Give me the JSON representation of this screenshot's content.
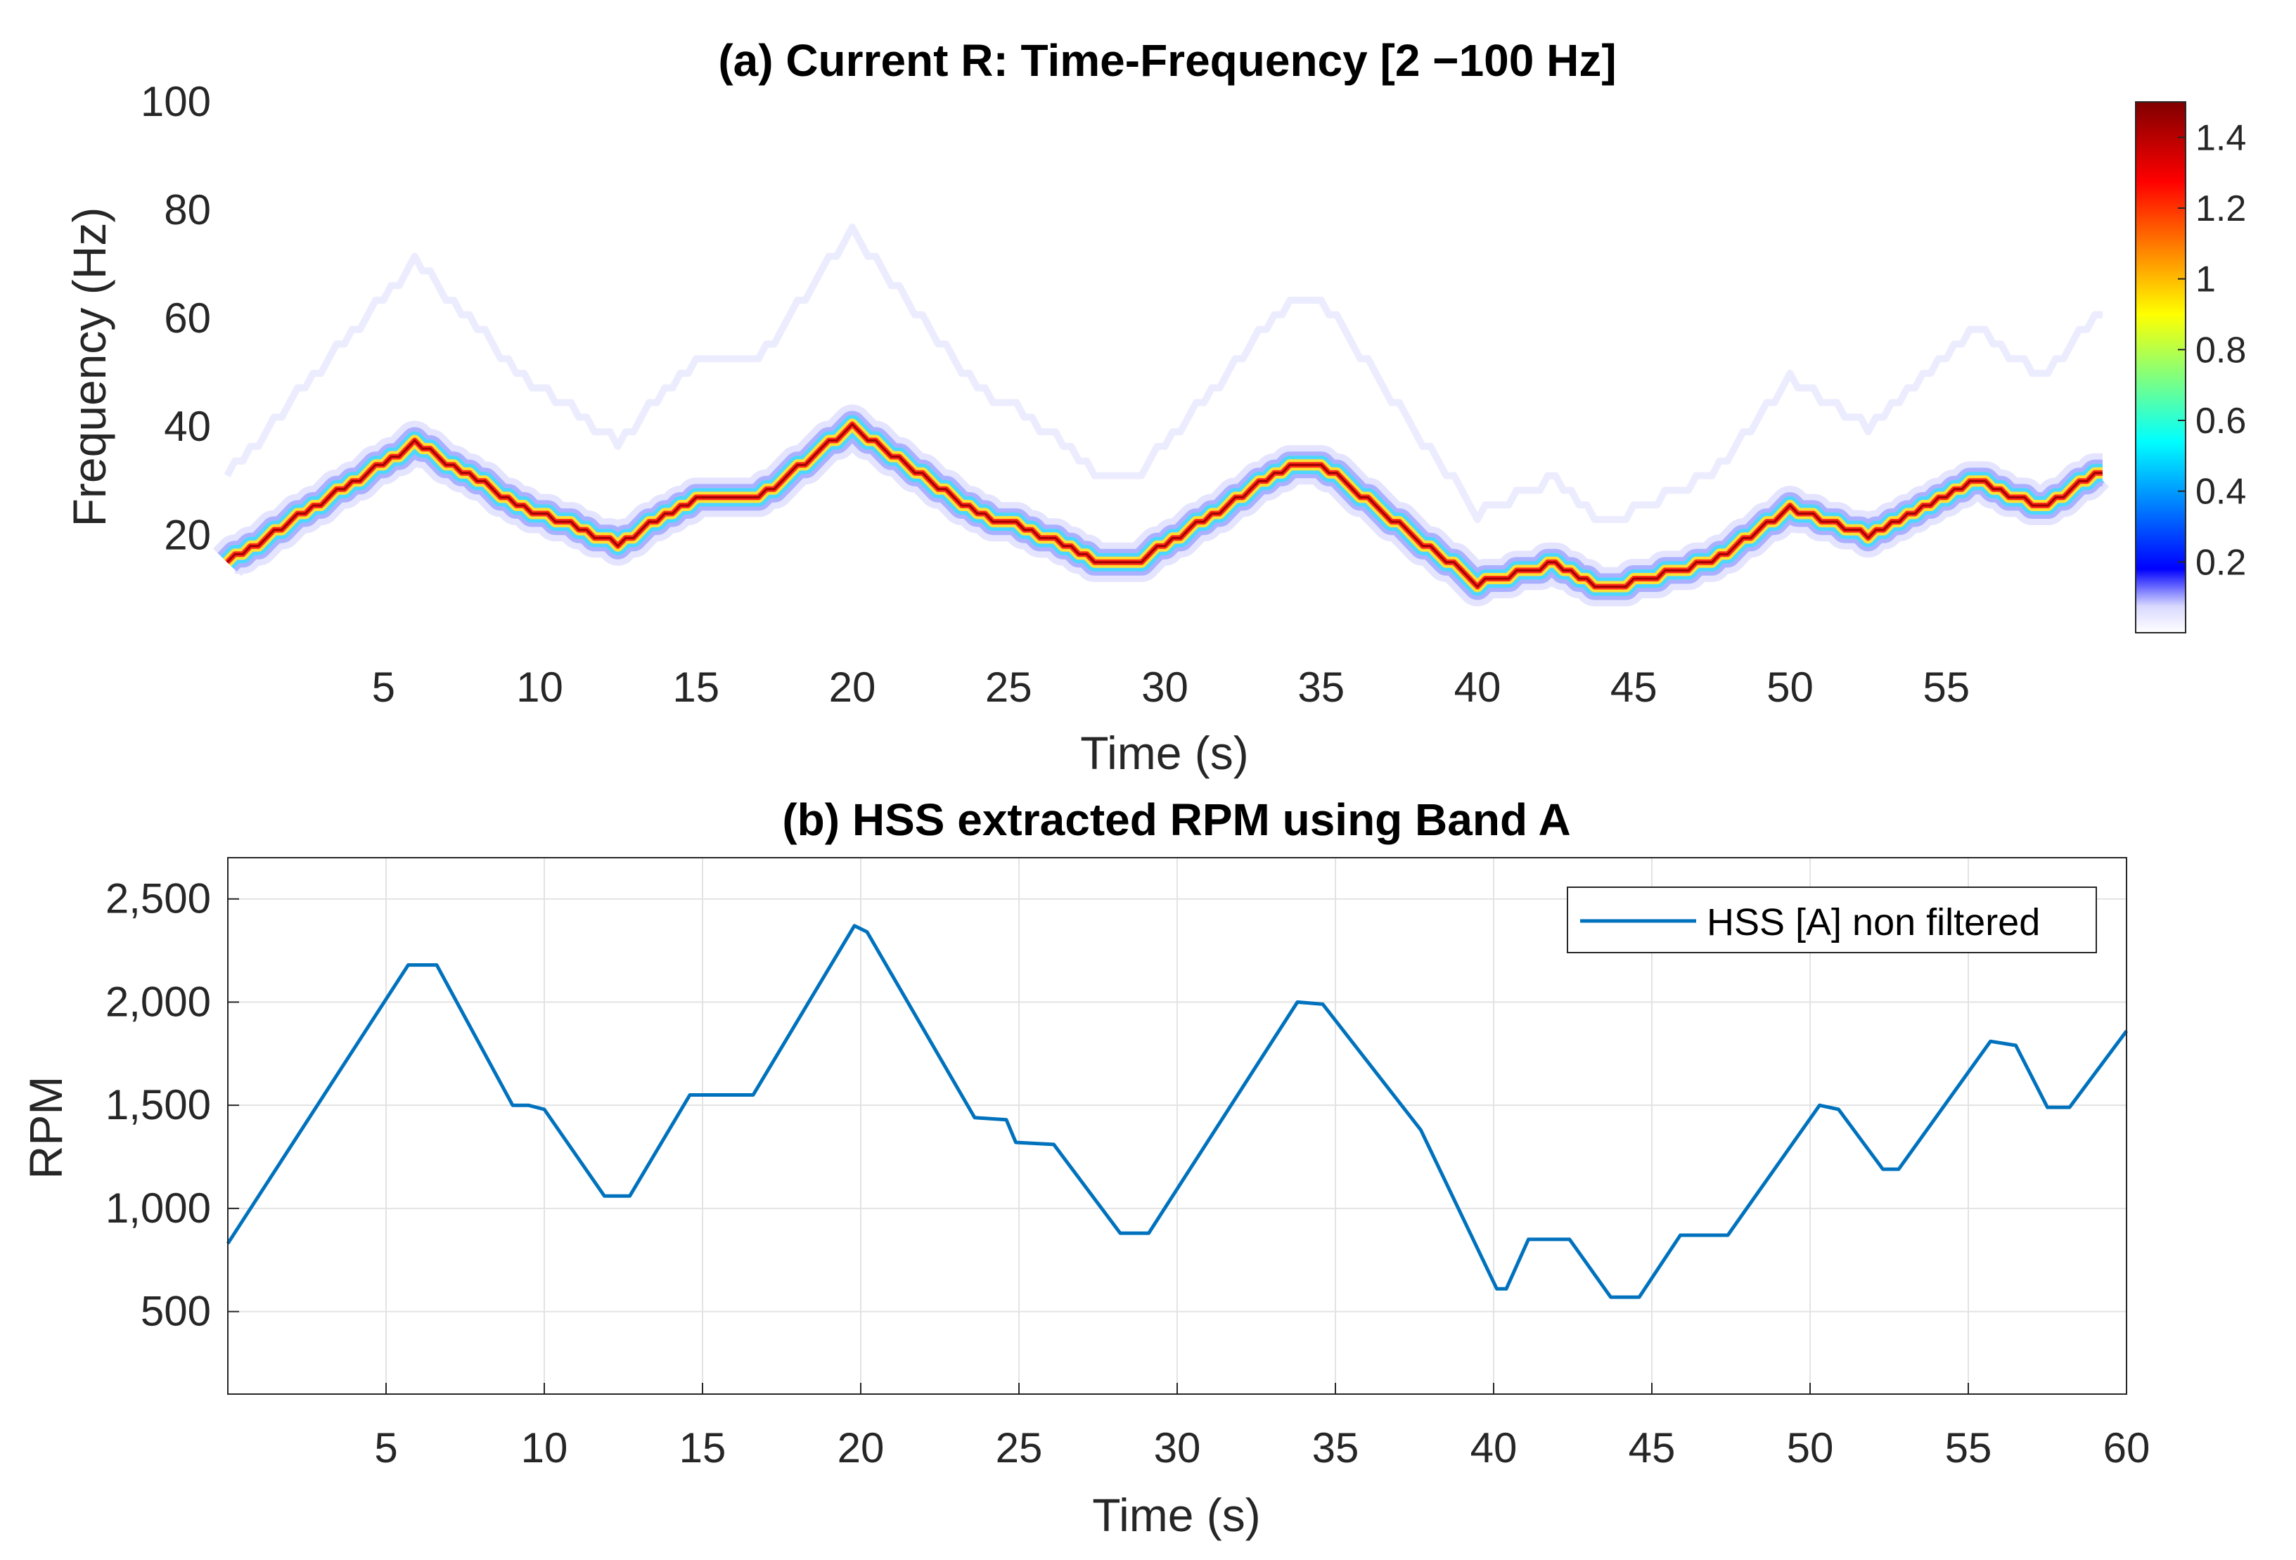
{
  "chart_data": [
    {
      "type": "heatmap",
      "title": "(a) Current R: Time-Frequency [2 −100 Hz]",
      "xlabel": "Time (s)",
      "ylabel": "Frequency (Hz)",
      "xlim": [
        0,
        60
      ],
      "ylim": [
        2,
        100
      ],
      "xticks": [
        5,
        10,
        15,
        20,
        25,
        30,
        35,
        40,
        45,
        50,
        55
      ],
      "yticks": [
        20,
        40,
        60,
        80,
        100
      ],
      "colorbar": {
        "min": 0,
        "max": 1.5,
        "ticks": [
          "0.2",
          "0.4",
          "0.6",
          "0.8",
          "1",
          "1.2",
          "1.4"
        ],
        "colormap": "jet"
      },
      "dominant_ridge": {
        "t": [
          0,
          6,
          9.5,
          12.5,
          15,
          17,
          20,
          24,
          25.5,
          28,
          29,
          34,
          35,
          40,
          42.5,
          44,
          47.5,
          50,
          52.5,
          56,
          58,
          60
        ],
        "f": [
          15,
          37,
          25,
          18.5,
          27,
          27,
          40,
          24,
          21.5,
          15,
          14.5,
          33,
          33,
          11,
          15,
          10,
          15,
          25,
          20,
          30,
          25,
          32
        ]
      }
    },
    {
      "type": "line",
      "title": "(b) HSS extracted RPM using Band A",
      "xlabel": "Time (s)",
      "ylabel": "RPM",
      "xlim": [
        0,
        60
      ],
      "ylim": [
        100,
        2700
      ],
      "xticks": [
        5,
        10,
        15,
        20,
        25,
        30,
        35,
        40,
        45,
        50,
        55,
        60
      ],
      "yticks": [
        "500",
        "1,000",
        "1,500",
        "2,000",
        "2,500"
      ],
      "grid": true,
      "legend_position": "top-right",
      "series": [
        {
          "name": "HSS [A] non filtered",
          "color": "#0072BD",
          "x": [
            0,
            5.7,
            6.6,
            9,
            9.5,
            10,
            11.9,
            12.7,
            14.6,
            15.9,
            16.6,
            19.8,
            20.2,
            23.6,
            24.6,
            24.9,
            26.1,
            28.2,
            29.1,
            33.8,
            34.6,
            37.7,
            40.1,
            40.4,
            41.1,
            42.4,
            43.7,
            44.6,
            45.9,
            47.4,
            50.3,
            50.9,
            52.3,
            52.8,
            55.7,
            56.5,
            57.5,
            58.2,
            60
          ],
          "values": [
            830,
            2180,
            2180,
            1500,
            1500,
            1480,
            1060,
            1060,
            1550,
            1550,
            1550,
            2370,
            2340,
            1440,
            1430,
            1320,
            1310,
            880,
            880,
            2000,
            1990,
            1380,
            610,
            610,
            850,
            850,
            570,
            570,
            870,
            870,
            1500,
            1480,
            1190,
            1190,
            1810,
            1790,
            1490,
            1490,
            1860
          ]
        }
      ]
    }
  ]
}
